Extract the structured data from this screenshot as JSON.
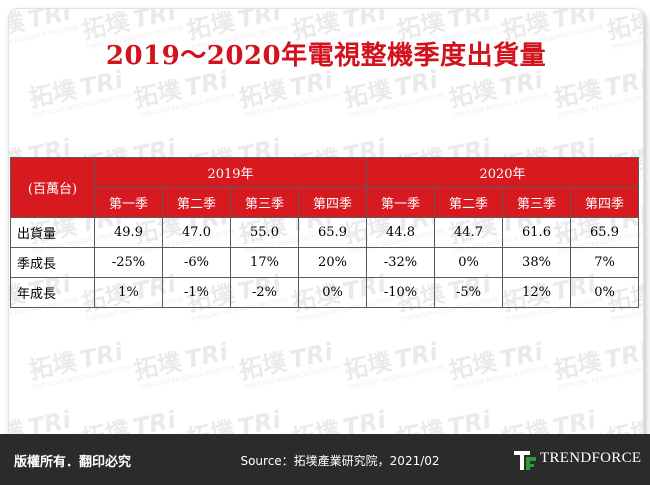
{
  "title": "2019～2020年電視整機季度出貨量",
  "unit_label": "(百萬台)",
  "years": [
    "2019年",
    "2020年"
  ],
  "quarters": [
    "第一季",
    "第二季",
    "第三季",
    "第四季",
    "第一季",
    "第二季",
    "第三季",
    "第四季"
  ],
  "rows": [
    {
      "label": "出貨量",
      "cells": [
        "49.9",
        "47.0",
        "55.0",
        "65.9",
        "44.8",
        "44.7",
        "61.6",
        "65.9"
      ]
    },
    {
      "label": "季成長",
      "cells": [
        "-25%",
        "-6%",
        "17%",
        "20%",
        "-32%",
        "0%",
        "38%",
        "7%"
      ]
    },
    {
      "label": "年成長",
      "cells": [
        "1%",
        "-1%",
        "-2%",
        "0%",
        "-10%",
        "-5%",
        "12%",
        "0%"
      ]
    }
  ],
  "chart_data": {
    "type": "table",
    "title": "2019～2020年電視整機季度出貨量",
    "unit": "(百萬台)",
    "columns": [
      "2019年 第一季",
      "2019年 第二季",
      "2019年 第三季",
      "2019年 第四季",
      "2020年 第一季",
      "2020年 第二季",
      "2020年 第三季",
      "2020年 第四季"
    ],
    "series": [
      {
        "name": "出貨量",
        "values": [
          49.9,
          47.0,
          55.0,
          65.9,
          44.8,
          44.7,
          61.6,
          65.9
        ]
      },
      {
        "name": "季成長",
        "values": [
          "-25%",
          "-6%",
          "17%",
          "20%",
          "-32%",
          "0%",
          "38%",
          "7%"
        ]
      },
      {
        "name": "年成長",
        "values": [
          "1%",
          "-1%",
          "-2%",
          "0%",
          "-10%",
          "-5%",
          "12%",
          "0%"
        ]
      }
    ]
  },
  "footer": {
    "rights": "版權所有．翻印必究",
    "source": "Source：拓墣產業研究院，2021/02",
    "brand": "TRENDFORCE"
  },
  "watermark": {
    "brand_cn": "拓墣",
    "brand_mark": "TRi",
    "tagline": "TOPOLOGY RESEARCH INSTITUTE"
  },
  "colors": {
    "accent": "#d71920",
    "title": "#d2121c",
    "footer_bg": "#2b2b2b"
  }
}
